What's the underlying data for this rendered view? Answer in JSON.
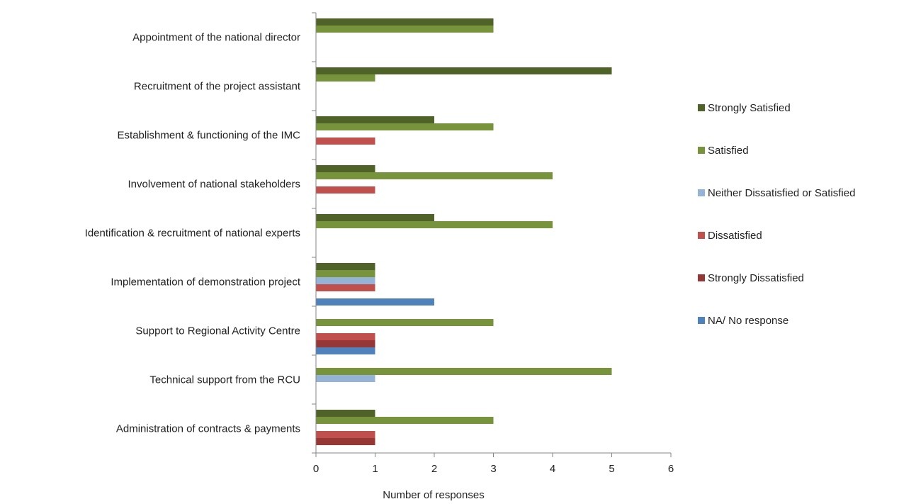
{
  "chart_data": {
    "type": "bar",
    "orientation": "horizontal",
    "title": "",
    "xlabel": "Number of responses",
    "ylabel": "",
    "xlim": [
      0,
      6
    ],
    "xticks": [
      "0",
      "1",
      "2",
      "3",
      "4",
      "5",
      "6"
    ],
    "grid": false,
    "legend_position": "right",
    "categories": [
      "Appointment of the national  director",
      "Recruitment of the project assistant",
      "Establishment  & functioning of the IMC",
      "Involvement of national stakeholders",
      "Identification & recruitment of national  experts",
      "Implementation of demonstration project",
      "Support to  Regional Activity Centre",
      "Technical support from the RCU",
      "Administration of contracts & payments"
    ],
    "series": [
      {
        "name": "Strongly Satisfied",
        "color": "#4F6228",
        "values": [
          3,
          5,
          2,
          1,
          2,
          1,
          0,
          0,
          1
        ]
      },
      {
        "name": "Satisfied",
        "color": "#77933C",
        "values": [
          3,
          1,
          3,
          4,
          4,
          1,
          3,
          5,
          3
        ]
      },
      {
        "name": "Neither Dissatisfied  or Satisfied",
        "color": "#95B3D7",
        "values": [
          0,
          0,
          0,
          0,
          0,
          1,
          0,
          1,
          0
        ]
      },
      {
        "name": "Dissatisfied",
        "color": "#C0504D",
        "values": [
          0,
          0,
          1,
          1,
          0,
          1,
          1,
          0,
          1
        ]
      },
      {
        "name": "Strongly Dissatisfied",
        "color": "#953735",
        "values": [
          0,
          0,
          0,
          0,
          0,
          0,
          1,
          0,
          1
        ]
      },
      {
        "name": "NA/ No response",
        "color": "#4F81BD",
        "values": [
          0,
          0,
          0,
          0,
          0,
          2,
          1,
          0,
          0
        ]
      }
    ]
  }
}
